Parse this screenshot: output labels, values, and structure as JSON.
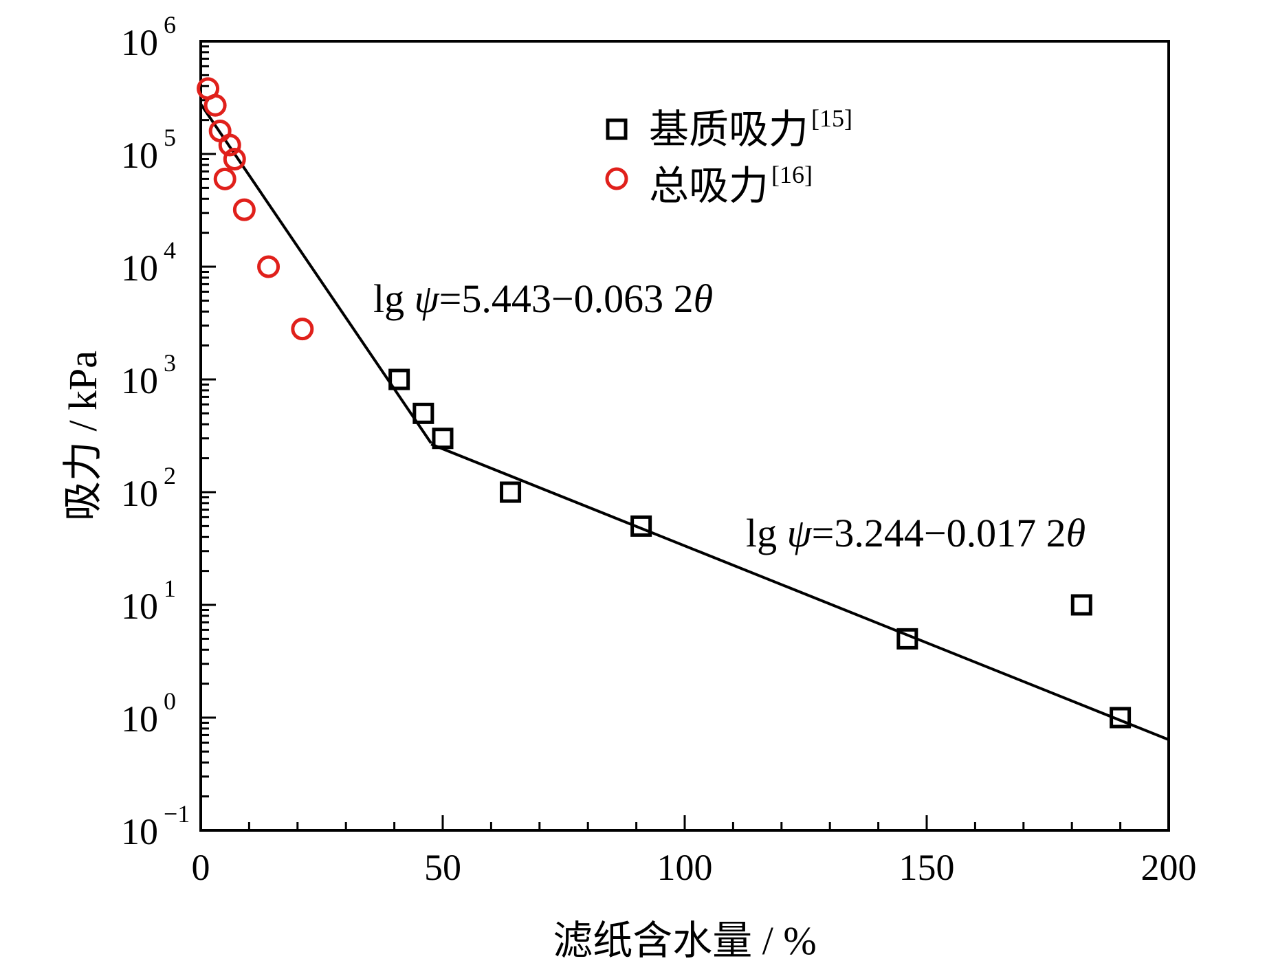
{
  "chart_data": {
    "type": "scatter",
    "title": "",
    "xlabel": "滤纸含水量 / %",
    "ylabel": "吸力 / kPa",
    "xlim": [
      0,
      200
    ],
    "ylim": [
      0.1,
      1000000
    ],
    "yscale": "log",
    "x_ticks": [
      "0",
      "50",
      "100",
      "150",
      "200"
    ],
    "y_ticks": [
      {
        "base": "10",
        "exp": "6",
        "value": 1000000
      },
      {
        "base": "10",
        "exp": "5",
        "value": 100000
      },
      {
        "base": "10",
        "exp": "4",
        "value": 10000
      },
      {
        "base": "10",
        "exp": "3",
        "value": 1000
      },
      {
        "base": "10",
        "exp": "2",
        "value": 100
      },
      {
        "base": "10",
        "exp": "1",
        "value": 10
      },
      {
        "base": "10",
        "exp": "0",
        "value": 1
      },
      {
        "base": "10",
        "exp": "−1",
        "value": 0.1
      }
    ],
    "series": [
      {
        "name": "基质吸力",
        "ref": "[15]",
        "marker": "square",
        "color": "#000000",
        "points": [
          {
            "x": 41,
            "y": 1000
          },
          {
            "x": 46,
            "y": 500
          },
          {
            "x": 50,
            "y": 300
          },
          {
            "x": 64,
            "y": 100
          },
          {
            "x": 91,
            "y": 50
          },
          {
            "x": 146,
            "y": 5
          },
          {
            "x": 182,
            "y": 10
          },
          {
            "x": 190,
            "y": 1
          }
        ]
      },
      {
        "name": "总吸力",
        "ref": "[16]",
        "marker": "circle",
        "color": "#e0201b",
        "points": [
          {
            "x": 1.5,
            "y": 380000
          },
          {
            "x": 3,
            "y": 270000
          },
          {
            "x": 4,
            "y": 160000
          },
          {
            "x": 6,
            "y": 120000
          },
          {
            "x": 7,
            "y": 90000
          },
          {
            "x": 5,
            "y": 60000
          },
          {
            "x": 9,
            "y": 32000
          },
          {
            "x": 14,
            "y": 10000
          },
          {
            "x": 21,
            "y": 2800
          }
        ]
      }
    ],
    "fit_lines": [
      {
        "label_lhs": "lg ",
        "label_psi": "ψ",
        "label_rhs": "=5.443−0.063 2",
        "label_theta": "θ",
        "intercept": 5.443,
        "slope": 0.0632,
        "x_range": [
          0,
          47.6
        ]
      },
      {
        "label_lhs": "lg ",
        "label_psi": "ψ",
        "label_rhs": "=3.244−0.017 2",
        "label_theta": "θ",
        "intercept": 3.244,
        "slope": 0.0172,
        "x_range": [
          47.6,
          200
        ]
      }
    ],
    "legend_position": "top-center"
  }
}
